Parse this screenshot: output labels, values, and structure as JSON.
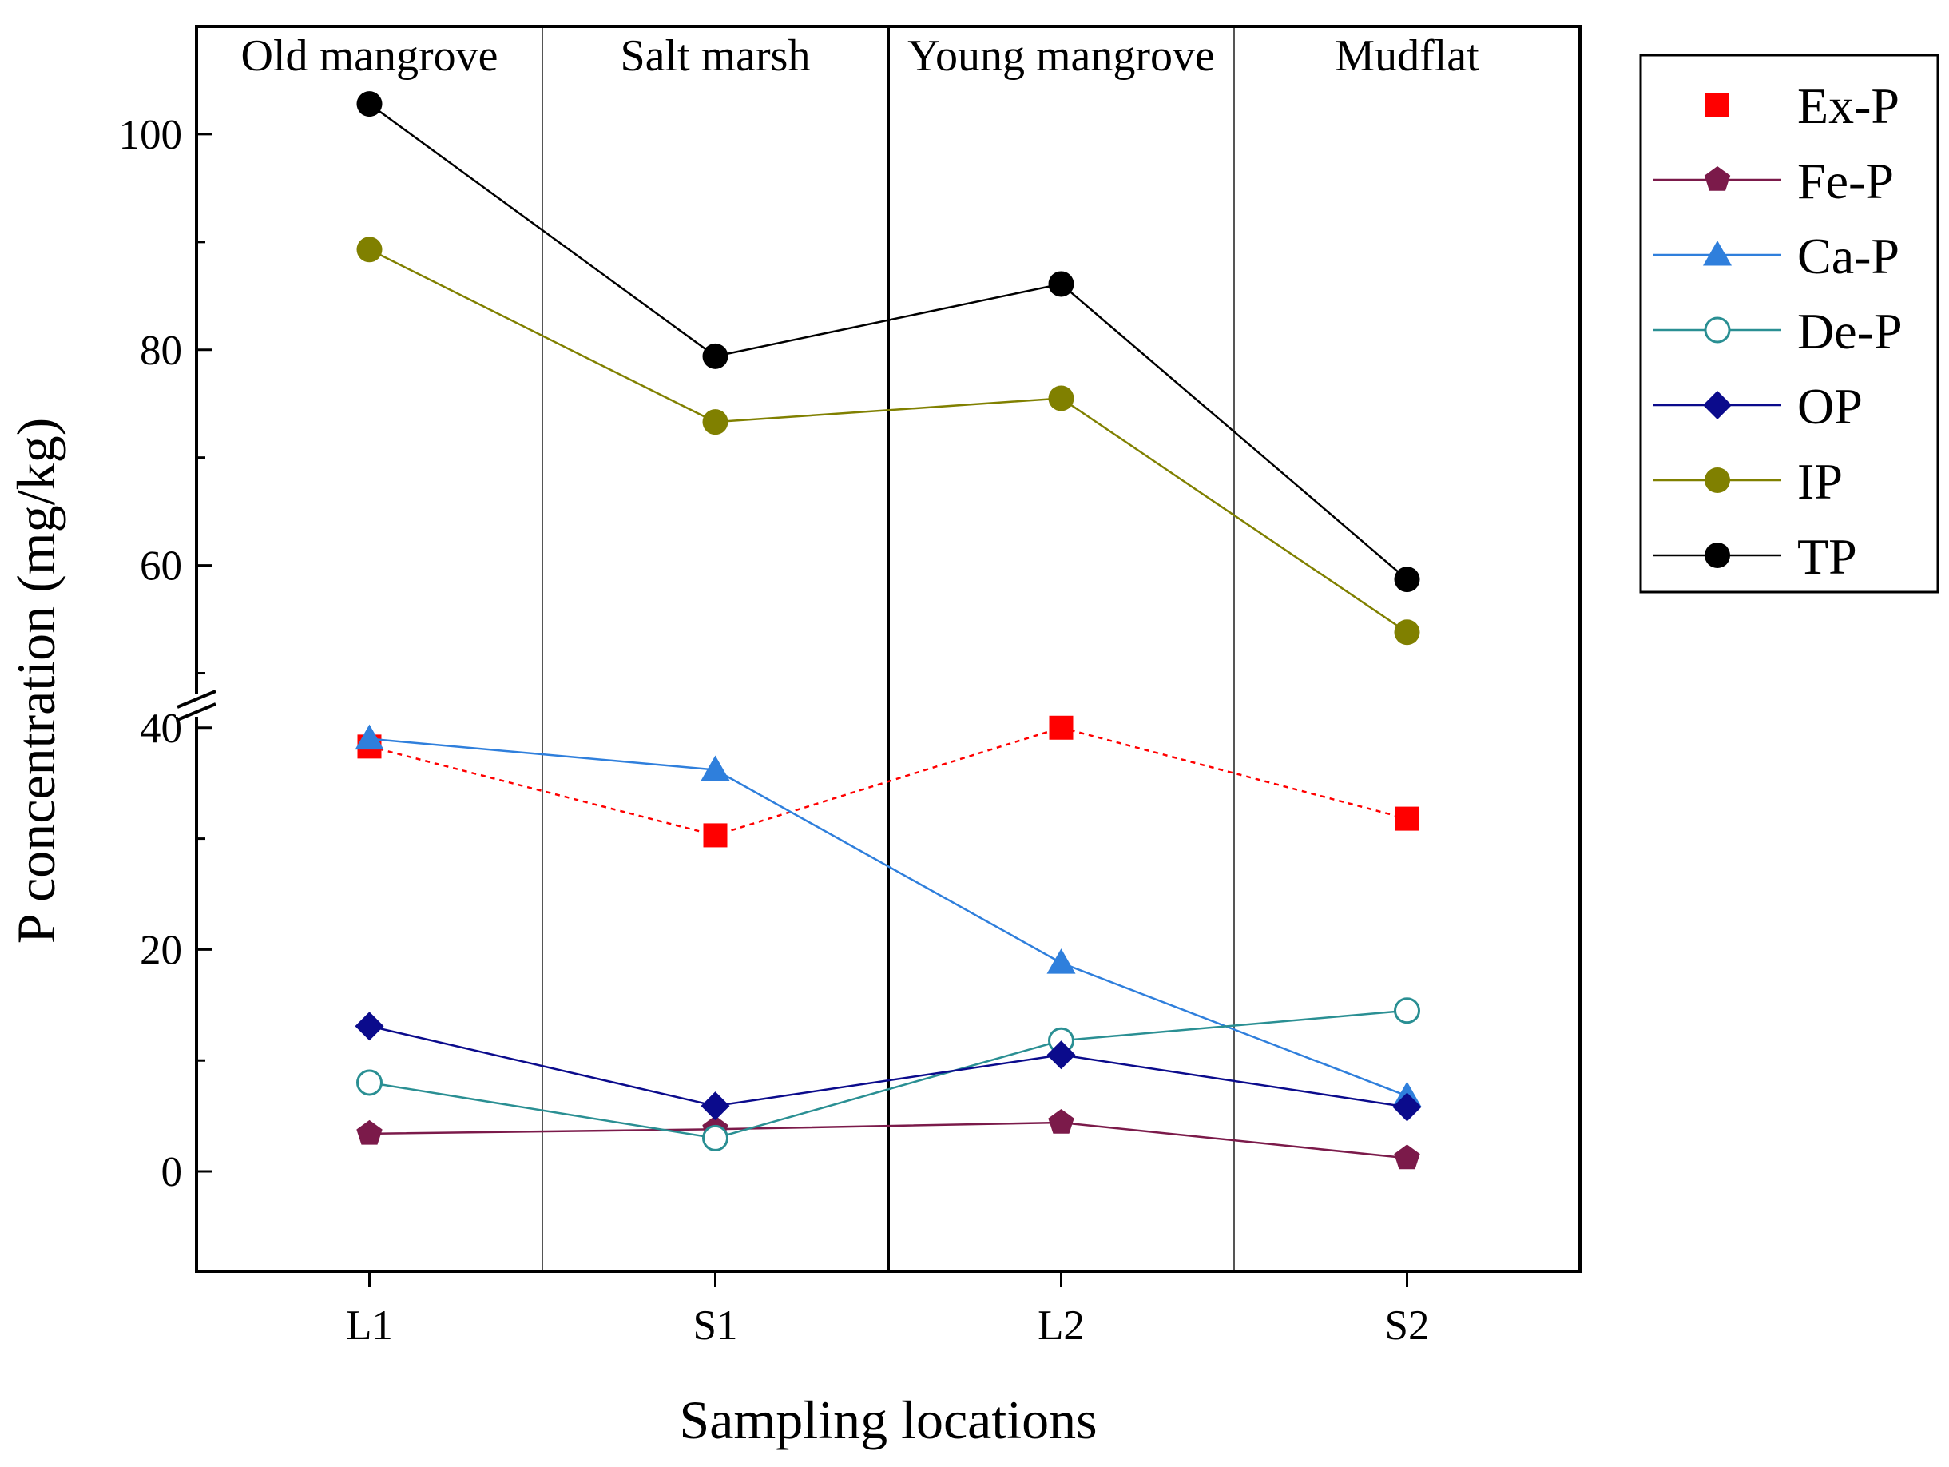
{
  "chart_data": {
    "type": "line",
    "xlabel": "Sampling locations",
    "ylabel": "P concentration (mg/kg)",
    "categories": [
      "L1",
      "S1",
      "L2",
      "S2"
    ],
    "regions": [
      "Old mangrove",
      "Salt marsh",
      "Young mangrove",
      "Mudflat"
    ],
    "y_axis_break": true,
    "ylim_lower": [
      -9,
      42
    ],
    "ylim_upper": [
      47,
      110
    ],
    "yticks": [
      "0",
      "20",
      "40",
      "60",
      "80",
      "100"
    ],
    "legend_position": "outside-right",
    "series": [
      {
        "name": "Ex-P",
        "values": [
          38.3,
          30.3,
          40.0,
          31.8
        ],
        "color": "#ff0000",
        "marker": "square",
        "line_style": "dotted"
      },
      {
        "name": "Fe-P",
        "values": [
          3.4,
          3.8,
          4.4,
          1.2
        ],
        "color": "#7b1a4a",
        "marker": "pentagon",
        "line_style": "solid"
      },
      {
        "name": "Ca-P",
        "values": [
          39.0,
          36.2,
          18.8,
          6.8
        ],
        "color": "#2f7fdc",
        "marker": "triangle",
        "line_style": "solid"
      },
      {
        "name": "De-P",
        "values": [
          8.0,
          3.0,
          11.8,
          14.5
        ],
        "color": "#2a8f93",
        "marker": "circle-open",
        "line_style": "solid"
      },
      {
        "name": "OP",
        "values": [
          13.1,
          5.9,
          10.5,
          5.8
        ],
        "color": "#0b0b8c",
        "marker": "diamond",
        "line_style": "solid"
      },
      {
        "name": "IP",
        "values": [
          89.3,
          73.3,
          75.5,
          53.8
        ],
        "color": "#808000",
        "marker": "circle",
        "line_style": "solid"
      },
      {
        "name": "TP",
        "values": [
          102.8,
          79.4,
          86.1,
          58.7
        ],
        "color": "#000000",
        "marker": "circle",
        "line_style": "solid"
      }
    ]
  }
}
